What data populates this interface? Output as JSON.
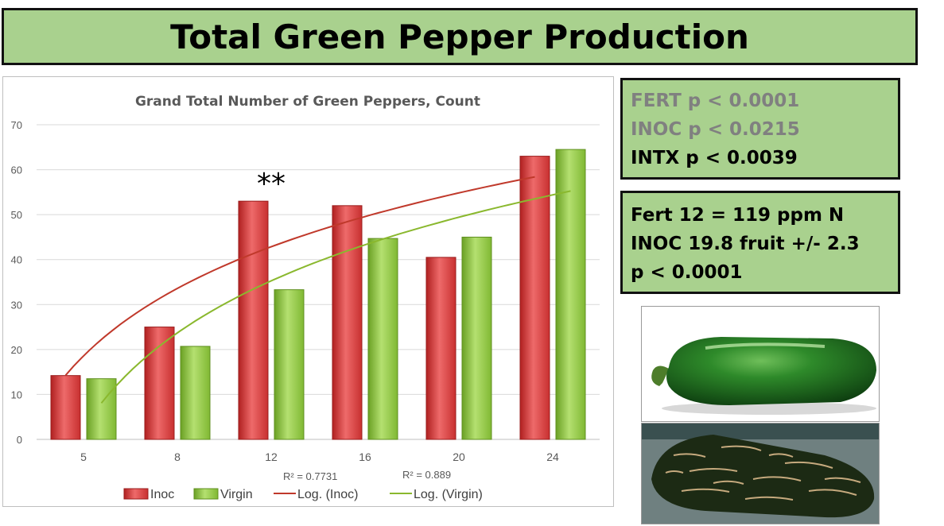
{
  "page_title": "Total Green Pepper Production",
  "stats": {
    "box1": [
      {
        "text": "FERT p < 0.0001",
        "color": "#808080"
      },
      {
        "text": "INOC p < 0.0215",
        "color": "#808080"
      },
      {
        "text": "INTX p < 0.0039",
        "color": "#000000"
      }
    ],
    "box2": [
      {
        "text": "Fert 12 = 119 ppm N"
      },
      {
        "text": "INOC  19.8 fruit +/- 2.3"
      },
      {
        "text": "p < 0.0001"
      }
    ]
  },
  "chart_data": {
    "type": "bar",
    "title": "Grand Total Number of Green Peppers, Count",
    "categories": [
      "5",
      "8",
      "12",
      "16",
      "20",
      "24"
    ],
    "series": [
      {
        "name": "Inoc",
        "color": "#d84040",
        "values": [
          14.2,
          25,
          53,
          52,
          40.5,
          63
        ]
      },
      {
        "name": "Virgin",
        "color": "#8cc83c",
        "values": [
          13.5,
          20.7,
          33.3,
          44.7,
          45,
          64.5
        ]
      }
    ],
    "trendlines": [
      {
        "name": "Log. (Inoc)",
        "series": "Inoc",
        "type": "logarithmic",
        "color": "#c0392b",
        "r2_label": "R² = 0.7731"
      },
      {
        "name": "Log. (Virgin)",
        "series": "Virgin",
        "type": "logarithmic",
        "color": "#8ab82e",
        "r2_label": "R² = 0.889"
      }
    ],
    "annotation": "**",
    "annotation_category": "12",
    "ylim": [
      0,
      70
    ],
    "yticks": [
      0,
      10,
      20,
      30,
      40,
      50,
      60,
      70
    ],
    "grid": true,
    "legend": "bottom"
  },
  "photos": [
    {
      "icon": "green-jalapeno-photo"
    },
    {
      "icon": "dark-corked-jalapeno-photo"
    }
  ]
}
